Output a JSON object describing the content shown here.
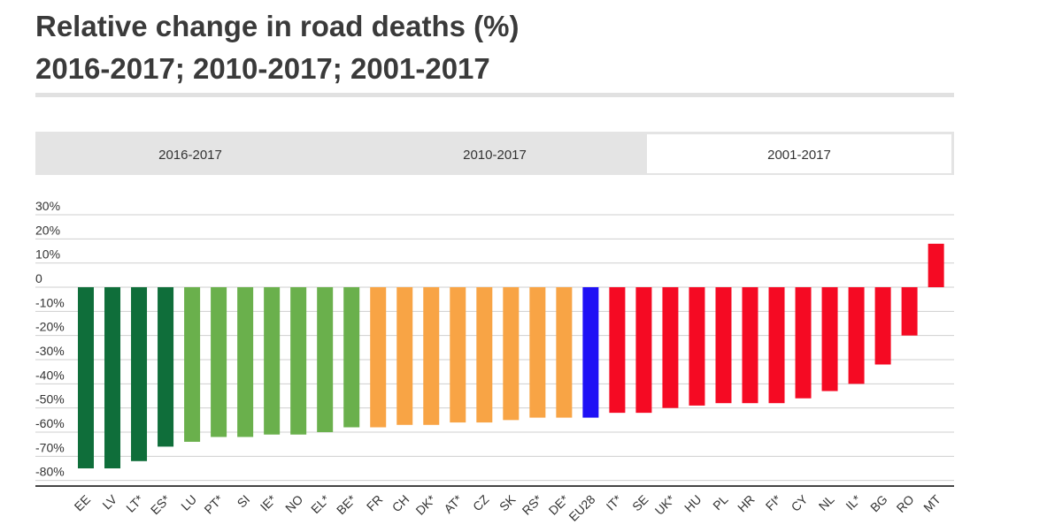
{
  "title": {
    "line1": "Relative change in road deaths (%)",
    "line2": "2016-2017; 2010-2017; 2001-2017"
  },
  "tabs": [
    {
      "label": "2016-2017",
      "active": false
    },
    {
      "label": "2010-2017",
      "active": false
    },
    {
      "label": "2001-2017",
      "active": true
    }
  ],
  "colors": {
    "dark_green": "#0f6e3a",
    "light_green": "#6ab04c",
    "orange": "#f8a445",
    "blue": "#1f10f5",
    "red": "#f50a23"
  },
  "chart_data": {
    "type": "bar",
    "title": "Relative change in road deaths (%)",
    "xlabel": "",
    "ylabel": "",
    "ylim": [
      -80,
      30
    ],
    "yticks": [
      30,
      20,
      10,
      0,
      -10,
      -20,
      -30,
      -40,
      -50,
      -60,
      -70,
      -80
    ],
    "ytick_labels": [
      "30%",
      "20%",
      "10%",
      "0",
      "-10%",
      "-20%",
      "-30%",
      "-40%",
      "-50%",
      "-60%",
      "-70%",
      "-80%"
    ],
    "grid": true,
    "categories": [
      "EE",
      "LV",
      "LT*",
      "ES*",
      "LU",
      "PT*",
      "SI",
      "IE*",
      "NO",
      "EL*",
      "BE*",
      "FR",
      "CH",
      "DK*",
      "AT*",
      "CZ",
      "SK",
      "RS*",
      "DE*",
      "EU28",
      "IT*",
      "SE",
      "UK*",
      "HU",
      "PL",
      "HR",
      "FI*",
      "CY",
      "NL",
      "IL*",
      "BG",
      "RO",
      "MT"
    ],
    "values": [
      -75,
      -75,
      -72,
      -66,
      -64,
      -62,
      -62,
      -61,
      -61,
      -60,
      -58,
      -58,
      -57,
      -57,
      -56,
      -56,
      -55,
      -54,
      -54,
      -54,
      -52,
      -52,
      -50,
      -49,
      -48,
      -48,
      -48,
      -46,
      -43,
      -40,
      -32,
      -20,
      18
    ],
    "bar_colors": [
      "dark_green",
      "dark_green",
      "dark_green",
      "dark_green",
      "light_green",
      "light_green",
      "light_green",
      "light_green",
      "light_green",
      "light_green",
      "light_green",
      "orange",
      "orange",
      "orange",
      "orange",
      "orange",
      "orange",
      "orange",
      "orange",
      "blue",
      "red",
      "red",
      "red",
      "red",
      "red",
      "red",
      "red",
      "red",
      "red",
      "red",
      "red",
      "red",
      "red"
    ]
  }
}
